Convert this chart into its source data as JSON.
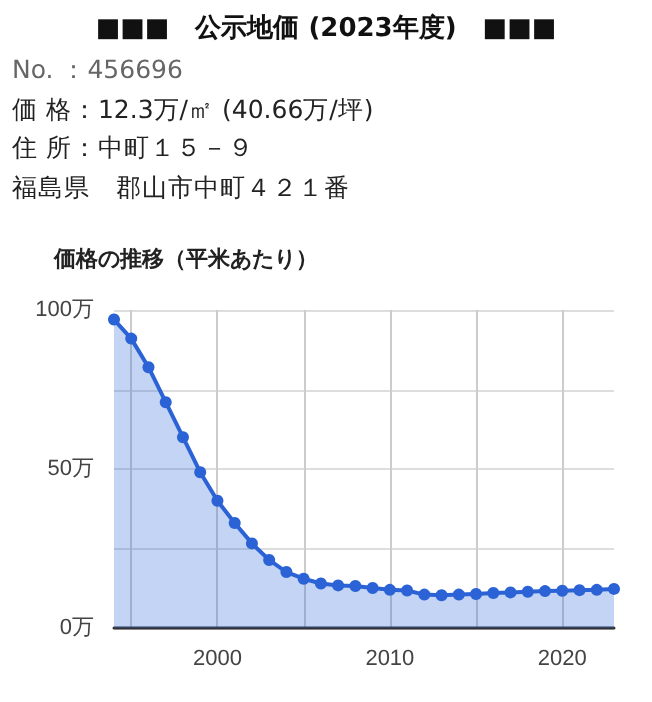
{
  "chart_data": {
    "type": "area",
    "title": "■■■　公示地価 (2023年度)　■■■",
    "subtitle": "価格の推移（平米あたり）",
    "annotations": [
      "No. ：456696",
      "価 格：12.3万/㎡ (40.66万/坪)",
      "住 所：中町１５－９",
      "福島県　郡山市中町４２１番"
    ],
    "x": [
      1994,
      1995,
      1996,
      1997,
      1998,
      1999,
      2000,
      2001,
      2002,
      2003,
      2004,
      2005,
      2006,
      2007,
      2008,
      2009,
      2010,
      2011,
      2012,
      2013,
      2014,
      2015,
      2016,
      2017,
      2018,
      2019,
      2020,
      2021,
      2022,
      2023
    ],
    "series": [
      {
        "color": "#2b63d6",
        "values": [
          97,
          91,
          82,
          71,
          60,
          49,
          40,
          33,
          26.6,
          21.4,
          17.6,
          15.5,
          14,
          13.4,
          13.2,
          12.6,
          12,
          11.8,
          10.5,
          10.3,
          10.5,
          10.7,
          11,
          11.2,
          11.4,
          11.6,
          11.7,
          11.9,
          12,
          12.3
        ]
      }
    ],
    "xlim": [
      1994,
      2023
    ],
    "xticks": [
      {
        "value": 1995,
        "label": null
      },
      2000,
      {
        "value": 2005,
        "label": null
      },
      2010,
      {
        "value": 2015,
        "label": null
      },
      2020
    ],
    "ylim": [
      0,
      100
    ],
    "yticks": [
      {
        "value": 0,
        "label": "0万"
      },
      {
        "value": 25,
        "label": null
      },
      {
        "value": 50,
        "label": "50万"
      },
      {
        "value": 75,
        "label": null
      },
      {
        "value": 100,
        "label": "100万"
      }
    ],
    "grid": true,
    "marker": "circle",
    "line_style": "solid"
  }
}
